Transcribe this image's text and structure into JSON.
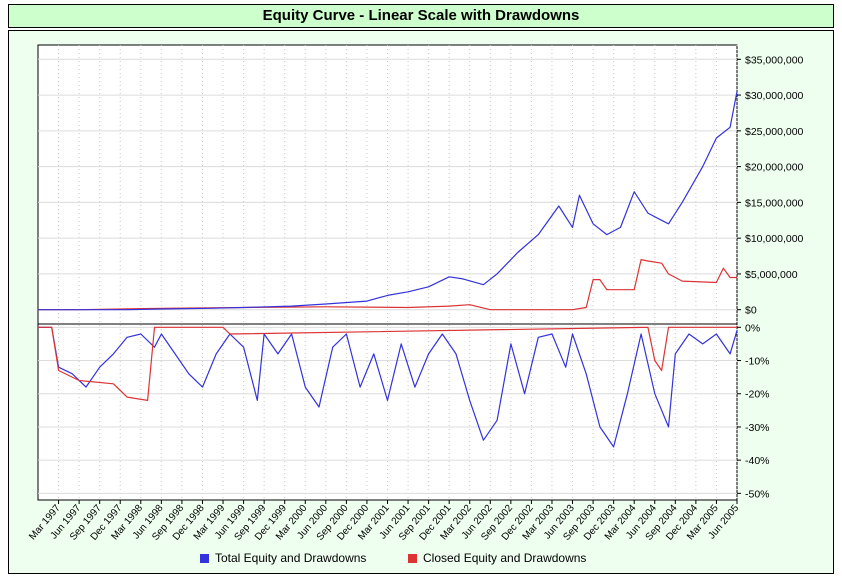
{
  "title": "Equity Curve - Linear Scale with Drawdowns",
  "colors": {
    "total": "#3333dd",
    "closed": "#dd3333",
    "title_bg": "#ccffcc",
    "panel_bg": "#eefff0"
  },
  "chart_data": [
    {
      "type": "line",
      "panel": "equity",
      "y_axis_side": "right",
      "ylim": [
        -2000000,
        37000000
      ],
      "yticks": [
        0,
        5000000,
        10000000,
        15000000,
        20000000,
        25000000,
        30000000,
        35000000
      ],
      "ytick_labels": [
        "$0",
        "$5,000,000",
        "$10,000,000",
        "$15,000,000",
        "$20,000,000",
        "$25,000,000",
        "$30,000,000",
        "$35,000,000"
      ],
      "grid": true,
      "series": [
        {
          "name": "Total Equity and Drawdowns",
          "x": [
            "1996-12",
            "1997-06",
            "1998-01",
            "1998-06",
            "1999-01",
            "1999-06",
            "2000-01",
            "2000-06",
            "2000-12",
            "2001-03",
            "2001-06",
            "2001-09",
            "2001-12",
            "2002-02",
            "2002-05",
            "2002-07",
            "2002-10",
            "2003-01",
            "2003-04",
            "2003-06",
            "2003-07",
            "2003-09",
            "2003-11",
            "2004-01",
            "2004-03",
            "2004-05",
            "2004-07",
            "2004-08",
            "2004-10",
            "2005-01",
            "2005-03",
            "2005-05",
            "2005-06"
          ],
          "values": [
            0,
            0,
            0,
            100000,
            200000,
            300000,
            500000,
            800000,
            1200000,
            2000000,
            2500000,
            3200000,
            4600000,
            4300000,
            3500000,
            5000000,
            8000000,
            10500000,
            14500000,
            11500000,
            16000000,
            12000000,
            10500000,
            11500000,
            16500000,
            13500000,
            12500000,
            12000000,
            15000000,
            20000000,
            24000000,
            25500000,
            30500000
          ]
        },
        {
          "name": "Closed Equity and Drawdowns",
          "x": [
            "1996-12",
            "1997-06",
            "1998-06",
            "1999-06",
            "2000-06",
            "2001-06",
            "2001-12",
            "2002-03",
            "2002-06",
            "2003-06",
            "2003-08",
            "2003-09",
            "2003-10",
            "2003-11",
            "2004-03",
            "2004-04",
            "2004-05",
            "2004-07",
            "2004-08",
            "2004-10",
            "2005-03",
            "2005-04",
            "2005-05",
            "2005-06"
          ],
          "values": [
            0,
            0,
            200000,
            300000,
            400000,
            300000,
            500000,
            700000,
            0,
            0,
            300000,
            4200000,
            4200000,
            2800000,
            2800000,
            7000000,
            6800000,
            6500000,
            5000000,
            4000000,
            3800000,
            5800000,
            4500000,
            4500000
          ]
        }
      ]
    },
    {
      "type": "line",
      "panel": "drawdown",
      "y_axis_side": "right",
      "ylim": [
        -52,
        1
      ],
      "yticks": [
        0,
        -10,
        -20,
        -30,
        -40,
        -50
      ],
      "ytick_labels": [
        "0%",
        "-10%",
        "-20%",
        "-30%",
        "-40%",
        "-50%"
      ],
      "grid": true,
      "series": [
        {
          "name": "Total Equity and Drawdowns",
          "x": [
            "1996-12",
            "1997-02",
            "1997-03",
            "1997-05",
            "1997-07",
            "1997-09",
            "1997-11",
            "1998-01",
            "1998-03",
            "1998-05",
            "1998-06",
            "1998-08",
            "1998-10",
            "1998-12",
            "1999-02",
            "1999-04",
            "1999-06",
            "1999-08",
            "1999-09",
            "1999-11",
            "2000-01",
            "2000-03",
            "2000-05",
            "2000-07",
            "2000-09",
            "2000-11",
            "2001-01",
            "2001-03",
            "2001-05",
            "2001-07",
            "2001-09",
            "2001-11",
            "2002-01",
            "2002-03",
            "2002-05",
            "2002-07",
            "2002-09",
            "2002-11",
            "2003-01",
            "2003-03",
            "2003-05",
            "2003-06",
            "2003-08",
            "2003-10",
            "2003-12",
            "2004-02",
            "2004-04",
            "2004-06",
            "2004-08",
            "2004-09",
            "2004-11",
            "2005-01",
            "2005-03",
            "2005-05",
            "2005-06"
          ],
          "values": [
            0,
            0,
            -12,
            -14,
            -18,
            -12,
            -8,
            -3,
            -2,
            -6,
            -2,
            -8,
            -14,
            -18,
            -8,
            -2,
            -6,
            -22,
            -2,
            -8,
            -2,
            -18,
            -24,
            -6,
            -2,
            -18,
            -8,
            -22,
            -5,
            -18,
            -8,
            -2,
            -8,
            -22,
            -34,
            -28,
            -5,
            -20,
            -3,
            -2,
            -12,
            -2,
            -14,
            -30,
            -36,
            -20,
            -2,
            -20,
            -30,
            -8,
            -2,
            -5,
            -2,
            -8,
            -1
          ]
        },
        {
          "name": "Closed Equity and Drawdowns",
          "x": [
            "1996-12",
            "1997-02",
            "1997-03",
            "1997-06",
            "1997-11",
            "1998-01",
            "1998-04",
            "1998-05",
            "1999-03",
            "1999-04",
            "2004-05",
            "2004-06",
            "2004-07",
            "2004-08",
            "2005-06"
          ],
          "values": [
            0,
            0,
            -13,
            -16,
            -17,
            -21,
            -22,
            0,
            0,
            -2,
            0,
            -10,
            -13,
            0,
            0
          ]
        }
      ]
    }
  ],
  "x_tick_labels": [
    "Mar 1997",
    "Jun 1997",
    "Sep 1997",
    "Dec 1997",
    "Mar 1998",
    "Jun 1998",
    "Sep 1998",
    "Dec 1998",
    "Mar 1999",
    "Jun 1999",
    "Sep 1999",
    "Dec 1999",
    "Mar 2000",
    "Jun 2000",
    "Sep 2000",
    "Dec 2000",
    "Mar 2001",
    "Jun 2001",
    "Sep 2001",
    "Dec 2001",
    "Mar 2002",
    "Jun 2002",
    "Sep 2002",
    "Dec 2002",
    "Mar 2003",
    "Jun 2003",
    "Sep 2003",
    "Dec 2003",
    "Mar 2004",
    "Jun 2004",
    "Sep 2004",
    "Dec 2004",
    "Mar 2005",
    "Jun 2005"
  ],
  "x_tick_dates": [
    "1997-03",
    "1997-06",
    "1997-09",
    "1997-12",
    "1998-03",
    "1998-06",
    "1998-09",
    "1998-12",
    "1999-03",
    "1999-06",
    "1999-09",
    "1999-12",
    "2000-03",
    "2000-06",
    "2000-09",
    "2000-12",
    "2001-03",
    "2001-06",
    "2001-09",
    "2001-12",
    "2002-03",
    "2002-06",
    "2002-09",
    "2002-12",
    "2003-03",
    "2003-06",
    "2003-09",
    "2003-12",
    "2004-03",
    "2004-06",
    "2004-09",
    "2004-12",
    "2005-03",
    "2005-06"
  ],
  "x_range": [
    "1996-12",
    "2005-06"
  ],
  "legend": [
    {
      "label": "Total Equity and Drawdowns",
      "color": "#3333dd"
    },
    {
      "label": "Closed Equity and Drawdowns",
      "color": "#dd3333"
    }
  ]
}
